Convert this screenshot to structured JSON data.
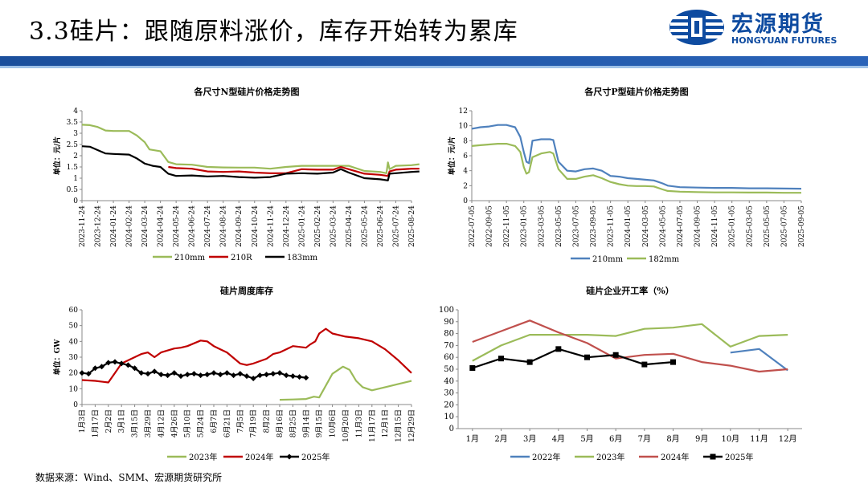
{
  "header": {
    "title": "3.3硅片：跟随原料涨价，库存开始转为累库",
    "logo_cn": "宏源期货",
    "logo_en": "HONGYUAN FUTURES",
    "brand_color": "#0e4ba0"
  },
  "source": "数据来源：Wind、SMM、宏源期货研究所",
  "chart_data": [
    {
      "type": "line",
      "title": "各尺寸N型硅片价格走势图",
      "ylabel": "单位：元/片",
      "ylim": [
        0,
        4
      ],
      "yticks": [
        "0",
        "0.5",
        "1",
        "1.5",
        "2",
        "2.5",
        "3",
        "3.5",
        "4"
      ],
      "categories": [
        "2023-11-24",
        "2023-12-24",
        "2024-01-24",
        "2024-02-24",
        "2024-03-24",
        "2024-04-24",
        "2024-05-24",
        "2024-06-24",
        "2024-07-24",
        "2024-08-24",
        "2024-09-24",
        "2024-10-24",
        "2024-11-24",
        "2024-12-24",
        "2025-01-24",
        "2025-02-24",
        "2025-03-24",
        "2025-04-24",
        "2025-05-24",
        "2025-06-24",
        "2025-07-24",
        "2025-08-24"
      ],
      "series": [
        {
          "name": "210mm",
          "color": "#9bbb59",
          "x": [
            0,
            0.5,
            1,
            1.5,
            2,
            3,
            3.5,
            4,
            4.3,
            5,
            5.5,
            6,
            7,
            8,
            9,
            10,
            11,
            12,
            13,
            14,
            15,
            16,
            17,
            18,
            19,
            19.4,
            19.5,
            19.6,
            20,
            21,
            21.5
          ],
          "values": [
            3.38,
            3.36,
            3.28,
            3.12,
            3.1,
            3.1,
            2.9,
            2.6,
            2.28,
            2.2,
            1.72,
            1.62,
            1.6,
            1.5,
            1.48,
            1.47,
            1.47,
            1.42,
            1.5,
            1.55,
            1.55,
            1.55,
            1.55,
            1.32,
            1.28,
            1.22,
            1.7,
            1.4,
            1.55,
            1.58,
            1.62
          ]
        },
        {
          "name": "210R",
          "color": "#c00000",
          "x": [
            5.5,
            6,
            7,
            8,
            9,
            10,
            11,
            12,
            13,
            14,
            15,
            16,
            16.5,
            17,
            18,
            19,
            19.5,
            19.6,
            20,
            21,
            21.5
          ],
          "values": [
            1.5,
            1.45,
            1.42,
            1.3,
            1.28,
            1.3,
            1.25,
            1.22,
            1.22,
            1.4,
            1.38,
            1.38,
            1.5,
            1.4,
            1.2,
            1.15,
            1.1,
            1.3,
            1.38,
            1.42,
            1.42
          ]
        },
        {
          "name": "183mm",
          "color": "#000000",
          "x": [
            0,
            0.5,
            1,
            1.5,
            2,
            3,
            3.5,
            4,
            4.5,
            5,
            5.5,
            6,
            7,
            8,
            9,
            10,
            11,
            12,
            13,
            14,
            15,
            16,
            16.5,
            17,
            18,
            19,
            19.5,
            19.6,
            20,
            21,
            21.5
          ],
          "values": [
            2.42,
            2.4,
            2.25,
            2.1,
            2.08,
            2.05,
            1.88,
            1.65,
            1.55,
            1.5,
            1.2,
            1.1,
            1.12,
            1.08,
            1.1,
            1.05,
            1.02,
            1.05,
            1.2,
            1.22,
            1.2,
            1.25,
            1.4,
            1.25,
            1.0,
            0.95,
            0.9,
            1.2,
            1.22,
            1.28,
            1.3
          ]
        }
      ],
      "legend": [
        "210mm",
        "210R",
        "183mm"
      ]
    },
    {
      "type": "line",
      "title": "各尺寸P型硅片价格走势图",
      "ylabel": "单位：元/片",
      "ylim": [
        0,
        12
      ],
      "yticks": [
        "0",
        "2",
        "4",
        "6",
        "8",
        "10",
        "12"
      ],
      "categories": [
        "2022-07-05",
        "2022-09-05",
        "2022-11-05",
        "2023-01-05",
        "2023-03-05",
        "2023-05-05",
        "2023-07-05",
        "2023-09-05",
        "2023-11-05",
        "2024-01-05",
        "2024-03-05",
        "2024-05-05",
        "2024-07-05",
        "2024-09-05",
        "2024-11-05",
        "2025-01-05",
        "2025-03-05",
        "2025-05-05",
        "2025-07-05",
        "2025-09-05"
      ],
      "series": [
        {
          "name": "210mm",
          "color": "#4f81bd",
          "x": [
            0,
            0.5,
            1,
            1.5,
            2,
            2.5,
            2.8,
            3,
            3.15,
            3.3,
            3.5,
            4,
            4.5,
            4.7,
            5,
            5.5,
            6,
            6.5,
            7,
            7.5,
            8,
            8.5,
            9,
            9.5,
            10,
            10.5,
            11,
            11.3,
            12,
            13,
            14,
            15,
            16,
            17,
            18,
            19
          ],
          "values": [
            9.6,
            9.8,
            9.9,
            10.1,
            10.1,
            9.8,
            8.5,
            6.5,
            5.2,
            5.0,
            8.0,
            8.2,
            8.2,
            8.1,
            5.2,
            4.0,
            3.9,
            4.2,
            4.3,
            4.0,
            3.3,
            3.2,
            3.0,
            2.9,
            2.8,
            2.7,
            2.3,
            2.0,
            1.8,
            1.75,
            1.7,
            1.7,
            1.65,
            1.65,
            1.62,
            1.6
          ]
        },
        {
          "name": "182mm",
          "color": "#9bbb59",
          "x": [
            0,
            0.5,
            1,
            1.5,
            2,
            2.5,
            2.8,
            3,
            3.15,
            3.3,
            3.5,
            4,
            4.5,
            4.7,
            5,
            5.5,
            6,
            6.5,
            7,
            7.5,
            8,
            8.5,
            9,
            9.5,
            10,
            10.5,
            11,
            11.3,
            12,
            13,
            14,
            15,
            16,
            17,
            18,
            19
          ],
          "values": [
            7.3,
            7.4,
            7.5,
            7.6,
            7.6,
            7.3,
            6.5,
            4.5,
            3.6,
            3.8,
            5.8,
            6.3,
            6.5,
            6.3,
            4.2,
            2.9,
            2.9,
            3.2,
            3.4,
            3.0,
            2.5,
            2.2,
            2.0,
            1.95,
            1.95,
            1.9,
            1.5,
            1.3,
            1.2,
            1.15,
            1.1,
            1.1,
            1.08,
            1.08,
            1.05,
            1.05
          ]
        }
      ],
      "legend": [
        "210mm",
        "182mm"
      ]
    },
    {
      "type": "line",
      "title": "硅片周度库存",
      "ylabel": "单位：GW",
      "ylim": [
        0,
        60
      ],
      "yticks": [
        "0",
        "10",
        "20",
        "30",
        "40",
        "50",
        "60"
      ],
      "categories": [
        "1月3日",
        "1月17日",
        "2月2日",
        "3月1日",
        "3月15日",
        "3月29日",
        "4月12日",
        "4月26日",
        "5月10日",
        "5月24日",
        "6月7日",
        "6月21日",
        "7月5日",
        "7月19日",
        "8月2日",
        "8月16日",
        "8月25日",
        "9月14日",
        "9月15日",
        "10月6日",
        "10月20日",
        "11月3日",
        "11月17日",
        "12月1日",
        "12月15日",
        "12月29日"
      ],
      "series": [
        {
          "name": "2023年",
          "color": "#9bbb59",
          "x": [
            15,
            16,
            17,
            17.6,
            18,
            19,
            19.8,
            20.3,
            20.8,
            21.3,
            22,
            23,
            24,
            25
          ],
          "values": [
            3,
            3.2,
            3.5,
            5,
            4.5,
            19.5,
            24,
            22,
            15,
            11,
            9,
            11,
            13,
            15
          ]
        },
        {
          "name": "2024年",
          "color": "#c00000",
          "x": [
            0,
            1,
            2,
            2.5,
            3,
            4,
            4.5,
            5,
            5.5,
            6,
            7,
            7.5,
            8,
            9,
            9.5,
            10,
            10.5,
            11,
            12,
            12.5,
            13,
            14,
            14.5,
            15,
            16,
            17,
            17.3,
            17.7,
            18,
            18.5,
            19,
            20,
            21,
            22,
            23,
            24,
            25
          ],
          "values": [
            15.5,
            15,
            14,
            20,
            26,
            30,
            32,
            33,
            30,
            33,
            35.5,
            36,
            37,
            40.5,
            40,
            37,
            35,
            33,
            26,
            25,
            26,
            29,
            32,
            33,
            37,
            36,
            38,
            40,
            45,
            48,
            45,
            43,
            42,
            40,
            35,
            28,
            20
          ]
        },
        {
          "name": "2025年",
          "color": "#000000",
          "marker": "diamond",
          "x": [
            0,
            0.5,
            1,
            1.5,
            2,
            2.5,
            3,
            3.5,
            4,
            4.5,
            5,
            5.5,
            6,
            6.5,
            7,
            7.5,
            8,
            8.5,
            9,
            9.5,
            10,
            10.5,
            11,
            11.5,
            12,
            12.5,
            13,
            13.5,
            14,
            14.5,
            15,
            15.5,
            16,
            16.5,
            17
          ],
          "values": [
            20,
            19.5,
            23,
            24,
            26.5,
            27,
            26,
            25,
            23,
            20,
            19.5,
            21,
            19,
            18.5,
            20,
            18,
            19,
            19.5,
            18.5,
            19,
            20,
            19,
            20,
            18.5,
            19.5,
            18,
            16.5,
            18.5,
            19,
            19.5,
            20,
            18.5,
            18,
            17.5,
            17
          ]
        }
      ],
      "legend": [
        "2023年",
        "2024年",
        "2025年"
      ]
    },
    {
      "type": "line",
      "title": "硅片企业开工率（%）",
      "ylim": [
        0,
        100
      ],
      "yticks": [
        "0",
        "10",
        "20",
        "30",
        "40",
        "50",
        "60",
        "70",
        "80",
        "90",
        "100"
      ],
      "categories": [
        "1月",
        "2月",
        "3月",
        "4月",
        "5月",
        "6月",
        "7月",
        "8月",
        "9月",
        "10月",
        "11月",
        "12月"
      ],
      "series": [
        {
          "name": "2022年",
          "color": "#4f81bd",
          "x": [
            9,
            10,
            11
          ],
          "values": [
            64,
            67,
            49
          ]
        },
        {
          "name": "2023年",
          "color": "#9bbb59",
          "x": [
            0,
            1,
            2,
            3,
            4,
            5,
            6,
            7,
            8,
            9,
            10,
            11
          ],
          "values": [
            57,
            70,
            79,
            79,
            79,
            78,
            84,
            85,
            88,
            69,
            78,
            79
          ]
        },
        {
          "name": "2024年",
          "color": "#c0504d",
          "x": [
            0,
            1,
            2,
            3,
            4,
            5,
            6,
            7,
            8,
            9,
            10,
            11
          ],
          "values": [
            73,
            82,
            91,
            81,
            72,
            59,
            62,
            63,
            56,
            53,
            48,
            50
          ]
        },
        {
          "name": "2025年",
          "color": "#000000",
          "marker": "square",
          "x": [
            0,
            1,
            2,
            3,
            4,
            5,
            6,
            7
          ],
          "values": [
            51,
            59,
            56,
            67,
            60,
            62,
            54,
            56
          ]
        }
      ],
      "legend": [
        "2022年",
        "2023年",
        "2024年",
        "2025年"
      ]
    }
  ]
}
